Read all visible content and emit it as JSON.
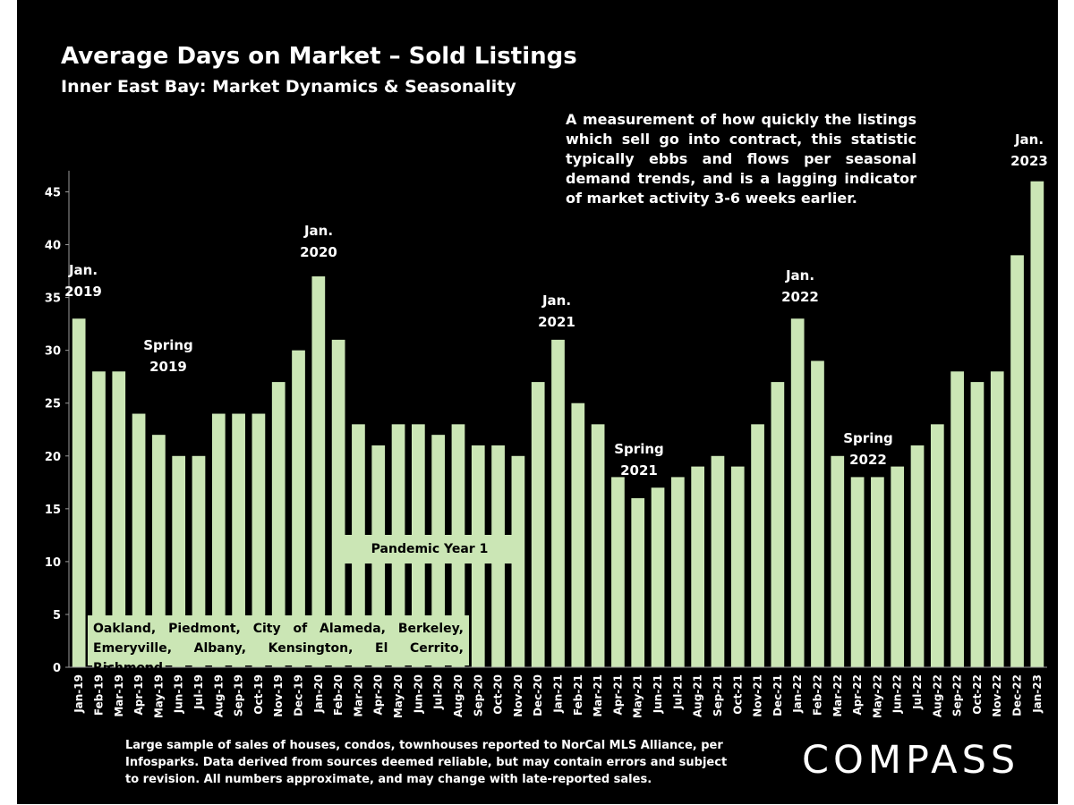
{
  "header": {
    "title": "Average Days on Market – Sold Listings",
    "subtitle": "Inner East Bay: Market Dynamics & Seasonality"
  },
  "description": "A measurement of how quickly the listings which sell go into contract, this statistic typically ebbs and flows per seasonal demand trends, and is a lagging indicator of market activity 3-6 weeks earlier.",
  "annotations": {
    "jan_2019": "Jan.\n2019",
    "spring_2019": "Spring\n2019",
    "jan_2020": "Jan.\n2020",
    "jan_2021": "Jan.\n2021",
    "spring_2021": "Spring\n2021",
    "jan_2022": "Jan.\n2022",
    "spring_2022": "Spring\n2022",
    "jan_2023": "Jan.\n2023",
    "pandemic": "Pandemic Year 1",
    "regions_line1": "Oakland, Piedmont, City of Alameda, Berkeley,",
    "regions_line2": "Emeryville, Albany, Kensington, El Cerrito, Richmond"
  },
  "footer": {
    "note": "Large sample of sales of houses, condos, townhouses reported to NorCal MLS Alliance, per Infosparks. Data derived from sources deemed reliable, but may contain errors and subject to revision. All numbers approximate, and may change with late-reported sales.",
    "logo": "COMPASS"
  },
  "colors": {
    "background": "#000000",
    "bar": "#cbe6b5",
    "text": "#ffffff",
    "axis": "#9a9a9a"
  },
  "chart_data": {
    "type": "bar",
    "categories": [
      "Jan-19",
      "Feb-19",
      "Mar-19",
      "Apr-19",
      "May-19",
      "Jun-19",
      "Jul-19",
      "Aug-19",
      "Sep-19",
      "Oct-19",
      "Nov-19",
      "Dec-19",
      "Jan-20",
      "Feb-20",
      "Mar-20",
      "Apr-20",
      "May-20",
      "Jun-20",
      "Jul-20",
      "Aug-20",
      "Sep-20",
      "Oct-20",
      "Nov-20",
      "Dec-20",
      "Jan-21",
      "Feb-21",
      "Mar-21",
      "Apr-21",
      "May-21",
      "Jun-21",
      "Jul-21",
      "Aug-21",
      "Sep-21",
      "Oct-21",
      "Nov-21",
      "Dec-21",
      "Jan-22",
      "Feb-22",
      "Mar-22",
      "Apr-22",
      "May-22",
      "Jun-22",
      "Jul-22",
      "Aug-22",
      "Sep-22",
      "Oct-22",
      "Nov-22",
      "Dec-22",
      "Jan-23"
    ],
    "values": [
      33,
      28,
      28,
      24,
      22,
      20,
      20,
      24,
      24,
      24,
      27,
      30,
      37,
      31,
      23,
      21,
      23,
      23,
      22,
      23,
      21,
      21,
      20,
      27,
      31,
      25,
      23,
      18,
      16,
      17,
      18,
      19,
      20,
      19,
      23,
      27,
      33,
      29,
      20,
      18,
      18,
      19,
      21,
      23,
      28,
      27,
      28,
      39,
      46
    ],
    "ylim": [
      0,
      47
    ],
    "yticks": [
      0,
      5,
      10,
      15,
      20,
      25,
      30,
      35,
      40,
      45
    ],
    "title": "Average Days on Market – Sold Listings",
    "subtitle": "Inner East Bay: Market Dynamics & Seasonality",
    "xlabel": "",
    "ylabel": "",
    "grid": false
  }
}
